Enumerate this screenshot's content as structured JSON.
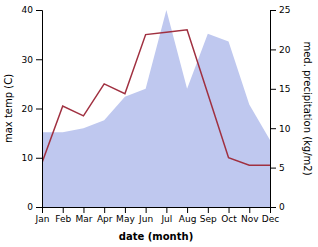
{
  "chart_data": {
    "type": "line",
    "xlabel": "date (month)",
    "ylabel": "max temp (C)",
    "y2label": "med. precipitation (kg/m2)",
    "categories": [
      "Jan",
      "Feb",
      "Mar",
      "Apr",
      "May",
      "Jun",
      "Jul",
      "Aug",
      "Sep",
      "Oct",
      "Nov",
      "Dec"
    ],
    "series": [
      {
        "type": "area",
        "axis": "y2",
        "color": "#bfc8ef",
        "values": [
          9.5,
          9.5,
          10,
          11,
          14,
          15,
          25,
          15,
          22,
          21,
          13,
          8.5
        ]
      },
      {
        "type": "line",
        "color": "#a03040",
        "values": [
          9,
          20.5,
          18.5,
          25,
          23,
          35,
          35.5,
          36,
          23,
          10,
          8.5,
          8.5
        ]
      }
    ],
    "ylim": [
      0,
      40
    ],
    "yticks": [
      0,
      10,
      20,
      30,
      40
    ],
    "y2lim": [
      0,
      25
    ],
    "y2ticks": [
      0,
      5,
      10,
      15,
      20,
      25
    ]
  }
}
